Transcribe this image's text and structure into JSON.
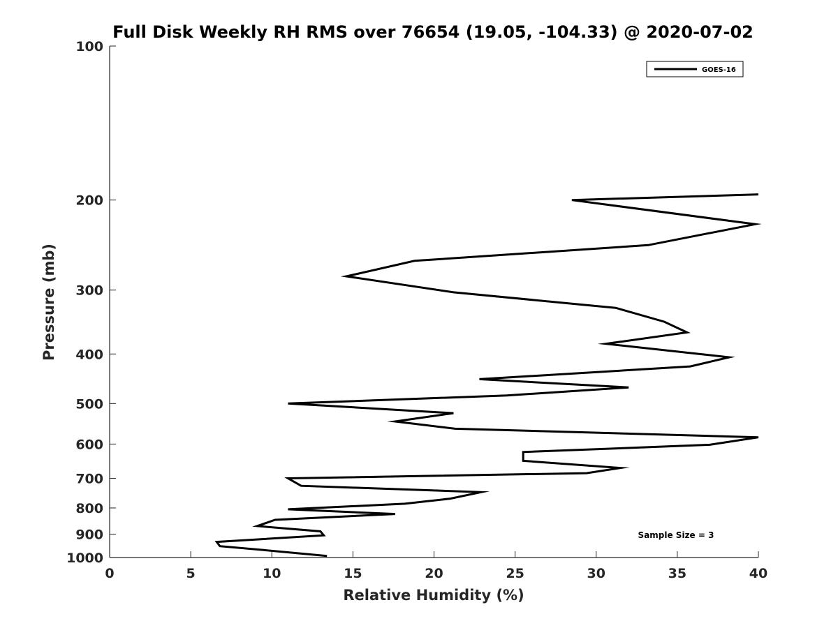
{
  "chart_data": {
    "type": "line",
    "title": "Full Disk Weekly RH RMS over 76654 (19.05, -104.33) @ 2020-07-02",
    "xlabel": "Relative Humidity (%)",
    "ylabel": "Pressure (mb)",
    "xlim": [
      0,
      40
    ],
    "ylim": [
      100,
      1000
    ],
    "yscale": "log",
    "ydirection": "reverse",
    "grid": false,
    "legend_position": "top-right",
    "xticks": [
      0,
      5,
      10,
      15,
      20,
      25,
      30,
      35,
      40
    ],
    "xtick_labels": [
      "0",
      "5",
      "10",
      "15",
      "20",
      "25",
      "30",
      "35",
      "40"
    ],
    "yticks": [
      100,
      200,
      300,
      400,
      500,
      600,
      700,
      800,
      900,
      1000
    ],
    "ytick_labels": [
      "100",
      "200",
      "300",
      "400",
      "500",
      "600",
      "700",
      "800",
      "900",
      "1000"
    ],
    "annotation": "Sample Size = 3",
    "series": [
      {
        "name": "GOES-16",
        "color": "#000000",
        "x": [
          40.0,
          28.5,
          39.8,
          33.2,
          18.8,
          14.6,
          21.2,
          31.2,
          34.2,
          35.6,
          30.6,
          38.2,
          35.8,
          22.8,
          32.0,
          24.5,
          11.0,
          21.2,
          17.6,
          21.3,
          40.0,
          37.0,
          25.5,
          25.5,
          31.5,
          29.4,
          11.0,
          11.8,
          22.9,
          21.0,
          18.2,
          11.0,
          17.6,
          10.2,
          9.1,
          13.0,
          13.2,
          6.6,
          6.8,
          9.5,
          13.4
        ],
        "y": [
          195,
          200,
          223,
          245,
          263,
          282,
          303,
          325,
          346,
          363,
          382,
          406,
          423,
          448,
          465,
          482,
          500,
          522,
          542,
          560,
          582,
          602,
          622,
          647,
          668,
          684,
          700,
          724,
          745,
          767,
          785,
          805,
          822,
          844,
          868,
          889,
          905,
          932,
          950,
          967,
          993
        ]
      }
    ]
  }
}
